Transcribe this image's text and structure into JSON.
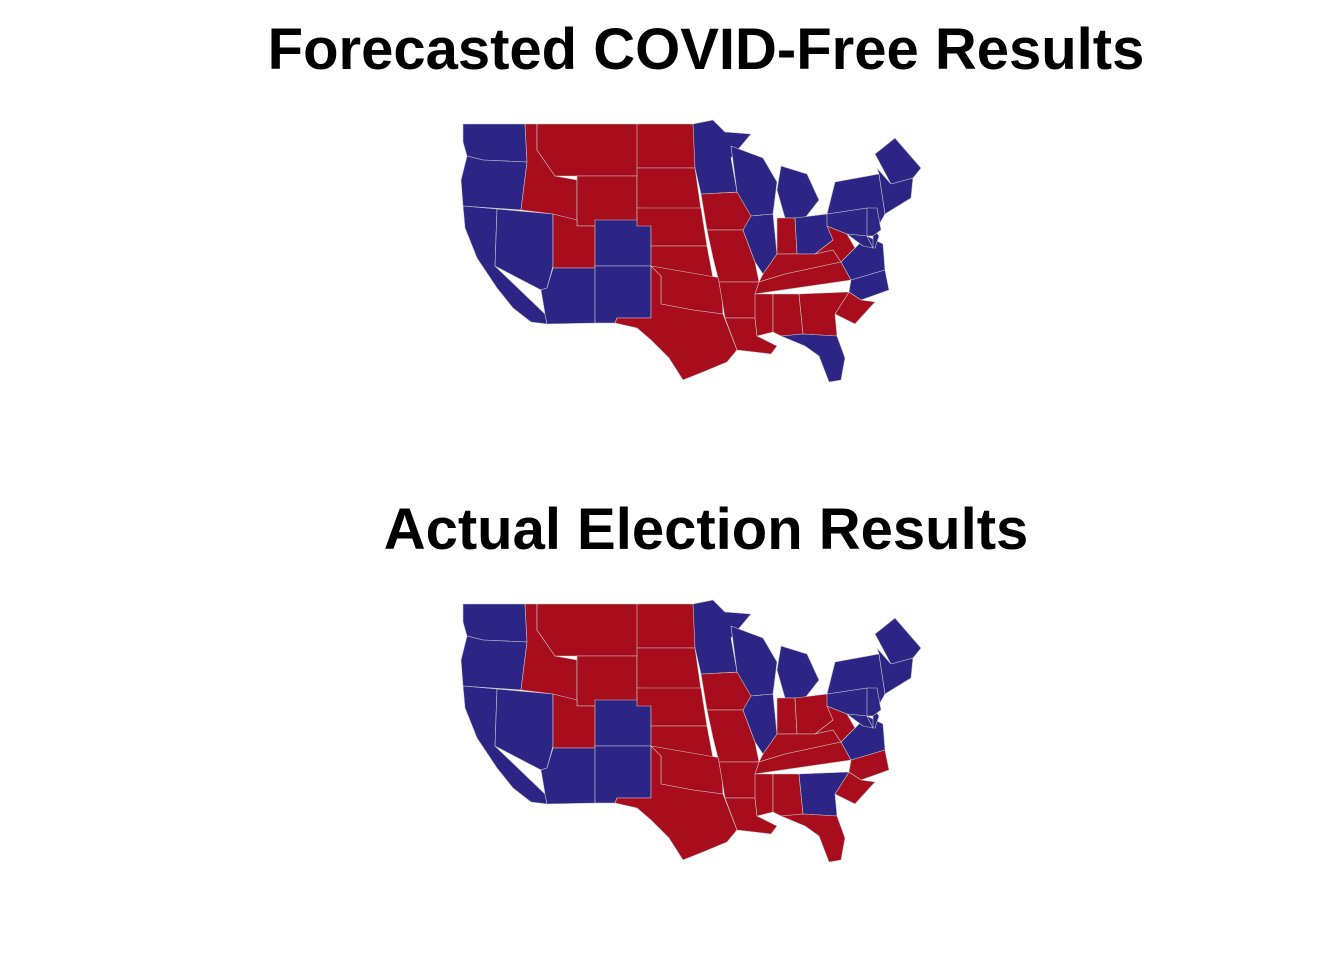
{
  "colors": {
    "dem": "#2c2585",
    "rep": "#a80d1d",
    "border": "#c9c9c9"
  },
  "maps": [
    {
      "title": "Forecasted COVID-Free Results",
      "winners": {
        "WA": "D",
        "OR": "D",
        "CA": "D",
        "NV": "D",
        "ID": "R",
        "MT": "R",
        "WY": "R",
        "UT": "R",
        "AZ": "D",
        "CO": "D",
        "NM": "D",
        "ND": "R",
        "SD": "R",
        "NE": "R",
        "KS": "R",
        "OK": "R",
        "TX": "R",
        "MN": "D",
        "IA": "R",
        "MO": "R",
        "AR": "R",
        "LA": "R",
        "WI": "D",
        "IL": "D",
        "MI": "D",
        "IN": "R",
        "OH": "D",
        "KY": "R",
        "TN": "R",
        "MS": "R",
        "AL": "R",
        "WV": "R",
        "VA": "D",
        "NC": "D",
        "SC": "R",
        "GA": "R",
        "FL": "D",
        "PA": "D",
        "NY": "D",
        "ME": "D",
        "NE6": "D",
        "MD": "D",
        "DE": "D",
        "NJ": "D"
      }
    },
    {
      "title": "Actual Election Results",
      "winners": {
        "WA": "D",
        "OR": "D",
        "CA": "D",
        "NV": "D",
        "ID": "R",
        "MT": "R",
        "WY": "R",
        "UT": "R",
        "AZ": "D",
        "CO": "D",
        "NM": "D",
        "ND": "R",
        "SD": "R",
        "NE": "R",
        "KS": "R",
        "OK": "R",
        "TX": "R",
        "MN": "D",
        "IA": "R",
        "MO": "R",
        "AR": "R",
        "LA": "R",
        "WI": "D",
        "IL": "D",
        "MI": "D",
        "IN": "R",
        "OH": "R",
        "KY": "R",
        "TN": "R",
        "MS": "R",
        "AL": "R",
        "WV": "R",
        "VA": "D",
        "NC": "R",
        "SC": "R",
        "GA": "D",
        "FL": "R",
        "PA": "D",
        "NY": "D",
        "ME": "D",
        "NE6": "D",
        "MD": "D",
        "DE": "D",
        "NJ": "D"
      }
    }
  ]
}
